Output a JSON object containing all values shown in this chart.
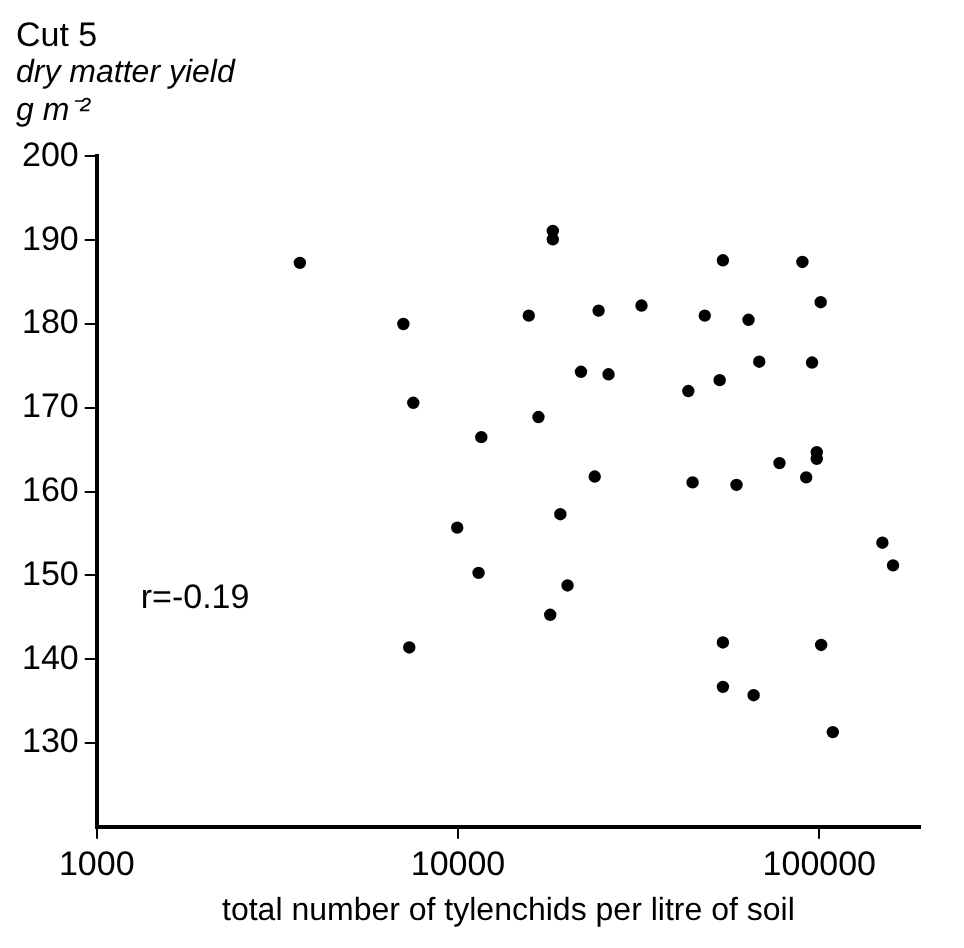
{
  "chart_data": {
    "type": "scatter",
    "title": "Cut 5",
    "ylabel": "dry matter yield\ng m⁻²",
    "xlabel": "total number of tylenchids per litre of soil",
    "x": [
      3650,
      7060,
      7520,
      18300,
      18300,
      54100,
      89800,
      100900,
      15700,
      24500,
      32200,
      48200,
      63700,
      68200,
      95500,
      21900,
      26100,
      43400,
      53000,
      16700,
      11600,
      77600,
      98400,
      98400,
      92000,
      23900,
      44600,
      59000,
      19200,
      9950,
      18000,
      20100,
      11400,
      7330,
      54100,
      54100,
      65800,
      101200,
      109000,
      149500,
      160000
    ],
    "values": [
      187.3,
      180.0,
      170.6,
      191.1,
      190.1,
      187.6,
      187.4,
      182.6,
      181.0,
      181.6,
      182.2,
      181.0,
      180.5,
      175.5,
      175.4,
      174.3,
      174.0,
      172.0,
      173.3,
      168.9,
      166.5,
      163.4,
      164.7,
      163.9,
      161.7,
      161.8,
      161.1,
      160.8,
      157.3,
      155.7,
      145.3,
      148.8,
      150.3,
      141.4,
      142.0,
      136.7,
      135.7,
      141.7,
      131.3,
      153.9,
      151.2
    ],
    "color": "#000000",
    "marker": "circle",
    "log": "x",
    "grid": false,
    "xlim": [
      1000,
      190000
    ],
    "xticks": [
      1000,
      10000,
      100000
    ],
    "ylim": [
      120,
      200
    ],
    "yticks": [
      130,
      140,
      150,
      160,
      170,
      180,
      190,
      200
    ],
    "annotations": [
      "r=-0.19"
    ]
  }
}
